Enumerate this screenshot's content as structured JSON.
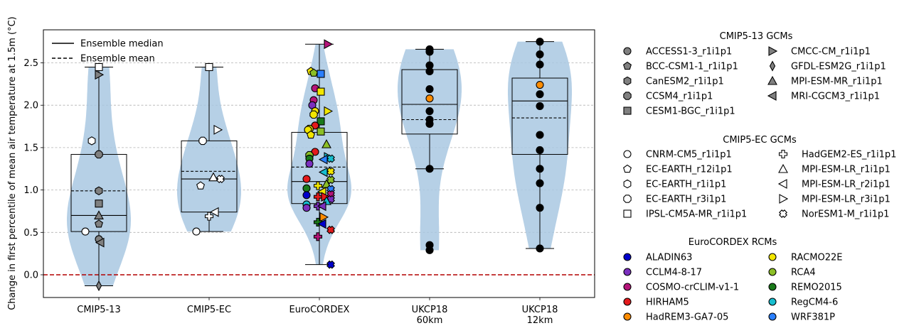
{
  "chart_data": {
    "type": "violin",
    "ylabel": "Change in first percentile of mean air temperature at 1.5m (°C)",
    "ylim": [
      -0.27,
      2.88
    ],
    "yticks": [
      "0.0",
      "0.5",
      "1.0",
      "1.5",
      "2.0",
      "2.5"
    ],
    "grid": "y-dashed",
    "reference_line": {
      "y": 0.0,
      "color": "#b30000",
      "style": "dashed"
    },
    "categories": [
      {
        "id": "cmip513",
        "label": [
          "CMIP5-13"
        ]
      },
      {
        "id": "cmip5ec",
        "label": [
          "CMIP5-EC"
        ]
      },
      {
        "id": "euro",
        "label": [
          "EuroCORDEX"
        ]
      },
      {
        "id": "ukcp60",
        "label": [
          "UKCP18",
          "60km"
        ]
      },
      {
        "id": "ukcp12",
        "label": [
          "UKCP18",
          "12km"
        ]
      }
    ],
    "legend_lines": [
      {
        "label": "Ensemble median",
        "style": "solid"
      },
      {
        "label": "Ensemble mean",
        "style": "dashed"
      }
    ],
    "boxes": [
      {
        "cat": "cmip513",
        "q1": 0.51,
        "median": 0.7,
        "q3": 1.42,
        "mean": 0.99,
        "whisker_low": -0.13,
        "whisker_high": 2.45
      },
      {
        "cat": "cmip5ec",
        "q1": 0.74,
        "median": 1.13,
        "q3": 1.58,
        "mean": 1.22,
        "whisker_low": 0.51,
        "whisker_high": 2.45
      },
      {
        "cat": "euro",
        "q1": 0.84,
        "median": 1.1,
        "q3": 1.68,
        "mean": 1.27,
        "whisker_low": 0.12,
        "whisker_high": 2.72
      },
      {
        "cat": "ukcp60",
        "q1": 1.66,
        "median": 2.01,
        "q3": 2.42,
        "mean": 1.83,
        "whisker_low": 1.25,
        "whisker_high": 2.66
      },
      {
        "cat": "ukcp12",
        "q1": 1.42,
        "median": 2.05,
        "q3": 2.32,
        "mean": 1.85,
        "whisker_low": 0.31,
        "whisker_high": 2.75
      }
    ],
    "legend_groups": [
      {
        "title": "CMIP5-13 GCMs",
        "items": [
          {
            "label": "ACCESS1-3_r1i1p1",
            "marker": "circle",
            "fill": "#808080"
          },
          {
            "label": "BCC-CSM1-1_r1i1p1",
            "marker": "pentagon",
            "fill": "#808080"
          },
          {
            "label": "CanESM2_r1i1p1",
            "marker": "hexagon",
            "fill": "#808080"
          },
          {
            "label": "CCSM4_r1i1p1",
            "marker": "octagon",
            "fill": "#808080"
          },
          {
            "label": "CESM1-BGC_r1i1p1",
            "marker": "square",
            "fill": "#808080"
          },
          {
            "label": "CMCC-CM_r1i1p1",
            "marker": "tri-right",
            "fill": "#808080"
          },
          {
            "label": "GFDL-ESM2G_r1i1p1",
            "marker": "diamond",
            "fill": "#808080"
          },
          {
            "label": "MPI-ESM-MR_r1i1p1",
            "marker": "tri-up",
            "fill": "#808080"
          },
          {
            "label": "MRI-CGCM3_r1i1p1",
            "marker": "tri-left",
            "fill": "#808080"
          }
        ]
      },
      {
        "title": "CMIP5-EC GCMs",
        "items": [
          {
            "label": "CNRM-CM5_r1i1p1",
            "marker": "circle",
            "fill": "#ffffff"
          },
          {
            "label": "EC-EARTH_r12i1p1",
            "marker": "pentagon",
            "fill": "#ffffff"
          },
          {
            "label": "EC-EARTH_r1i1p1",
            "marker": "hexagon",
            "fill": "#ffffff"
          },
          {
            "label": "EC-EARTH_r3i1p1",
            "marker": "octagon",
            "fill": "#ffffff"
          },
          {
            "label": "IPSL-CM5A-MR_r1i1p1",
            "marker": "square",
            "fill": "#ffffff"
          },
          {
            "label": "HadGEM2-ES_r1i1p1",
            "marker": "plus",
            "fill": "#ffffff"
          },
          {
            "label": "MPI-ESM-LR_r1i1p1",
            "marker": "tri-up",
            "fill": "#ffffff"
          },
          {
            "label": "MPI-ESM-LR_r2i1p1",
            "marker": "tri-left",
            "fill": "#ffffff"
          },
          {
            "label": "MPI-ESM-LR_r3i1p1",
            "marker": "tri-right",
            "fill": "#ffffff"
          },
          {
            "label": "NorESM1-M_r1i1p1",
            "marker": "xcross",
            "fill": "#ffffff"
          }
        ]
      },
      {
        "title": "EuroCORDEX RCMs",
        "items": [
          {
            "label": "ALADIN63",
            "marker": "circle",
            "fill": "#0000cc"
          },
          {
            "label": "CCLM4-8-17",
            "marker": "circle",
            "fill": "#7b2fbe"
          },
          {
            "label": "COSMO-crCLIM-v1-1",
            "marker": "circle",
            "fill": "#b5147a"
          },
          {
            "label": "HIRHAM5",
            "marker": "circle",
            "fill": "#e41a1c"
          },
          {
            "label": "HadREM3-GA7-05",
            "marker": "circle",
            "fill": "#ff8c00"
          },
          {
            "label": "RACMO22E",
            "marker": "circle",
            "fill": "#f2e600"
          },
          {
            "label": "RCA4",
            "marker": "circle",
            "fill": "#8cbf26"
          },
          {
            "label": "REMO2015",
            "marker": "circle",
            "fill": "#1a7a1a"
          },
          {
            "label": "RegCM4-6",
            "marker": "circle",
            "fill": "#17becf"
          },
          {
            "label": "WRF381P",
            "marker": "circle",
            "fill": "#2a7fff"
          }
        ]
      }
    ],
    "points": [
      {
        "cat": "cmip513",
        "dx": -19,
        "y": 0.51,
        "marker": "circle",
        "fill": "#ffffff"
      },
      {
        "cat": "cmip513",
        "dx": -10,
        "y": 1.58,
        "marker": "hexagon",
        "fill": "#ffffff"
      },
      {
        "cat": "cmip513",
        "dx": 0,
        "y": 2.45,
        "marker": "square",
        "fill": "#ffffff"
      },
      {
        "cat": "cmip513",
        "dx": 0,
        "y": 2.36,
        "marker": "tri-right",
        "fill": "#808080"
      },
      {
        "cat": "cmip513",
        "dx": 0,
        "y": 1.42,
        "marker": "octagon",
        "fill": "#808080"
      },
      {
        "cat": "cmip513",
        "dx": 0,
        "y": 0.99,
        "marker": "hexagon",
        "fill": "#808080"
      },
      {
        "cat": "cmip513",
        "dx": 0,
        "y": 0.84,
        "marker": "square",
        "fill": "#808080"
      },
      {
        "cat": "cmip513",
        "dx": 0,
        "y": 0.7,
        "marker": "tri-up",
        "fill": "#808080"
      },
      {
        "cat": "cmip513",
        "dx": 0,
        "y": 0.6,
        "marker": "pentagon",
        "fill": "#808080"
      },
      {
        "cat": "cmip513",
        "dx": 0,
        "y": 0.42,
        "marker": "circle",
        "fill": "#808080"
      },
      {
        "cat": "cmip513",
        "dx": 2,
        "y": 0.38,
        "marker": "tri-left",
        "fill": "#808080"
      },
      {
        "cat": "cmip513",
        "dx": 0,
        "y": -0.13,
        "marker": "diamond",
        "fill": "#808080"
      },
      {
        "cat": "cmip5ec",
        "dx": -18,
        "y": 0.51,
        "marker": "circle",
        "fill": "#ffffff"
      },
      {
        "cat": "cmip5ec",
        "dx": -12,
        "y": 1.05,
        "marker": "pentagon",
        "fill": "#ffffff"
      },
      {
        "cat": "cmip5ec",
        "dx": -9,
        "y": 1.58,
        "marker": "octagon",
        "fill": "#ffffff"
      },
      {
        "cat": "cmip5ec",
        "dx": 0,
        "y": 2.45,
        "marker": "square",
        "fill": "#ffffff"
      },
      {
        "cat": "cmip5ec",
        "dx": 0,
        "y": 0.69,
        "marker": "plus",
        "fill": "#ffffff"
      },
      {
        "cat": "cmip5ec",
        "dx": 6,
        "y": 1.15,
        "marker": "tri-up",
        "fill": "#ffffff"
      },
      {
        "cat": "cmip5ec",
        "dx": 8,
        "y": 0.74,
        "marker": "tri-left",
        "fill": "#ffffff"
      },
      {
        "cat": "cmip5ec",
        "dx": 12,
        "y": 1.71,
        "marker": "tri-right",
        "fill": "#ffffff"
      },
      {
        "cat": "cmip5ec",
        "dx": 16,
        "y": 1.13,
        "marker": "xcross",
        "fill": "#ffffff"
      },
      {
        "cat": "euro",
        "dx": 12,
        "y": 2.72,
        "marker": "tri-right",
        "fill": "#b5147a"
      },
      {
        "cat": "euro",
        "dx": -12,
        "y": 2.4,
        "marker": "pentagon",
        "fill": "#f2e600"
      },
      {
        "cat": "euro",
        "dx": -8,
        "y": 2.38,
        "marker": "pentagon",
        "fill": "#8cbf26"
      },
      {
        "cat": "euro",
        "dx": 2,
        "y": 2.37,
        "marker": "square",
        "fill": "#2a7fff"
      },
      {
        "cat": "euro",
        "dx": -6,
        "y": 2.2,
        "marker": "circle",
        "fill": "#b5147a"
      },
      {
        "cat": "euro",
        "dx": 2,
        "y": 2.16,
        "marker": "square",
        "fill": "#f2e600"
      },
      {
        "cat": "euro",
        "dx": -8,
        "y": 2.06,
        "marker": "circle",
        "fill": "#b5147a"
      },
      {
        "cat": "euro",
        "dx": -10,
        "y": 2.0,
        "marker": "circle",
        "fill": "#7b2fbe"
      },
      {
        "cat": "euro",
        "dx": -6,
        "y": 1.93,
        "marker": "circle",
        "fill": "#f2e600"
      },
      {
        "cat": "euro",
        "dx": 12,
        "y": 1.93,
        "marker": "tri-right",
        "fill": "#f2e600"
      },
      {
        "cat": "euro",
        "dx": -8,
        "y": 1.89,
        "marker": "octagon",
        "fill": "#f2e600"
      },
      {
        "cat": "euro",
        "dx": 2,
        "y": 1.81,
        "marker": "square",
        "fill": "#1a7a1a"
      },
      {
        "cat": "euro",
        "dx": -6,
        "y": 1.76,
        "marker": "circle",
        "fill": "#e41a1c"
      },
      {
        "cat": "euro",
        "dx": -14,
        "y": 1.72,
        "marker": "octagon",
        "fill": "#f2e600"
      },
      {
        "cat": "euro",
        "dx": -16,
        "y": 1.71,
        "marker": "circle",
        "fill": "#f2e600"
      },
      {
        "cat": "euro",
        "dx": 2,
        "y": 1.69,
        "marker": "square",
        "fill": "#8cbf26"
      },
      {
        "cat": "euro",
        "dx": -12,
        "y": 1.65,
        "marker": "pentagon",
        "fill": "#f2e600"
      },
      {
        "cat": "euro",
        "dx": 10,
        "y": 1.54,
        "marker": "tri-up",
        "fill": "#8cbf26"
      },
      {
        "cat": "euro",
        "dx": -6,
        "y": 1.45,
        "marker": "circle",
        "fill": "#e41a1c"
      },
      {
        "cat": "euro",
        "dx": -14,
        "y": 1.41,
        "marker": "octagon",
        "fill": "#8cbf26"
      },
      {
        "cat": "euro",
        "dx": -14,
        "y": 1.37,
        "marker": "circle",
        "fill": "#1a7a1a"
      },
      {
        "cat": "euro",
        "dx": 12,
        "y": 1.39,
        "marker": "tri-right",
        "fill": "#17becf"
      },
      {
        "cat": "euro",
        "dx": 16,
        "y": 1.37,
        "marker": "xcross",
        "fill": "#17becf"
      },
      {
        "cat": "euro",
        "dx": 6,
        "y": 1.36,
        "marker": "tri-left",
        "fill": "#2a7fff"
      },
      {
        "cat": "euro",
        "dx": -14,
        "y": 1.31,
        "marker": "circle",
        "fill": "#7b2fbe"
      },
      {
        "cat": "euro",
        "dx": 16,
        "y": 1.22,
        "marker": "xcross",
        "fill": "#f2e600"
      },
      {
        "cat": "euro",
        "dx": 6,
        "y": 1.21,
        "marker": "tri-left",
        "fill": "#17becf"
      },
      {
        "cat": "euro",
        "dx": -18,
        "y": 1.13,
        "marker": "circle",
        "fill": "#e41a1c"
      },
      {
        "cat": "euro",
        "dx": 16,
        "y": 1.12,
        "marker": "xcross",
        "fill": "#8cbf26"
      },
      {
        "cat": "euro",
        "dx": 10,
        "y": 1.07,
        "marker": "tri-up",
        "fill": "#8cbf26"
      },
      {
        "cat": "euro",
        "dx": -2,
        "y": 1.05,
        "marker": "plus",
        "fill": "#f2e600"
      },
      {
        "cat": "euro",
        "dx": -18,
        "y": 1.02,
        "marker": "circle",
        "fill": "#1a7a1a"
      },
      {
        "cat": "euro",
        "dx": 16,
        "y": 1.01,
        "marker": "xcross",
        "fill": "#2a7fff"
      },
      {
        "cat": "euro",
        "dx": 4,
        "y": 0.98,
        "marker": "tri-left",
        "fill": "#f2e600"
      },
      {
        "cat": "euro",
        "dx": -18,
        "y": 0.94,
        "marker": "circle",
        "fill": "#0000cc"
      },
      {
        "cat": "euro",
        "dx": 16,
        "y": 0.95,
        "marker": "xcross",
        "fill": "#b5147a"
      },
      {
        "cat": "euro",
        "dx": -2,
        "y": 0.92,
        "marker": "plus",
        "fill": "#e41a1c"
      },
      {
        "cat": "euro",
        "dx": 8,
        "y": 0.92,
        "marker": "tri-right",
        "fill": "#e41a1c"
      },
      {
        "cat": "euro",
        "dx": 16,
        "y": 0.89,
        "marker": "xcross",
        "fill": "#7b2fbe"
      },
      {
        "cat": "euro",
        "dx": 10,
        "y": 0.87,
        "marker": "tri-up",
        "fill": "#17becf"
      },
      {
        "cat": "euro",
        "dx": -18,
        "y": 0.83,
        "marker": "circle",
        "fill": "#17becf"
      },
      {
        "cat": "euro",
        "dx": -18,
        "y": 0.79,
        "marker": "circle",
        "fill": "#7b2fbe"
      },
      {
        "cat": "euro",
        "dx": -2,
        "y": 0.81,
        "marker": "plus",
        "fill": "#7b2fbe"
      },
      {
        "cat": "euro",
        "dx": 4,
        "y": 0.81,
        "marker": "tri-left",
        "fill": "#7b2fbe"
      },
      {
        "cat": "euro",
        "dx": 6,
        "y": 0.68,
        "marker": "tri-right",
        "fill": "#ff8c00"
      },
      {
        "cat": "euro",
        "dx": -2,
        "y": 0.62,
        "marker": "plus",
        "fill": "#1a7a1a"
      },
      {
        "cat": "euro",
        "dx": 4,
        "y": 0.6,
        "marker": "tri-left",
        "fill": "#0000cc"
      },
      {
        "cat": "euro",
        "dx": 16,
        "y": 0.53,
        "marker": "xcross",
        "fill": "#e41a1c"
      },
      {
        "cat": "euro",
        "dx": -2,
        "y": 0.45,
        "marker": "plus",
        "fill": "#b5147a"
      },
      {
        "cat": "euro",
        "dx": 16,
        "y": 0.12,
        "marker": "xcross",
        "fill": "#0000cc"
      },
      {
        "cat": "ukcp60",
        "dx": 0,
        "y": 2.66,
        "marker": "circle",
        "fill": "#000000"
      },
      {
        "cat": "ukcp60",
        "dx": 0,
        "y": 2.63,
        "marker": "circle",
        "fill": "#000000"
      },
      {
        "cat": "ukcp60",
        "dx": 0,
        "y": 2.47,
        "marker": "circle",
        "fill": "#000000"
      },
      {
        "cat": "ukcp60",
        "dx": 0,
        "y": 2.4,
        "marker": "circle",
        "fill": "#000000"
      },
      {
        "cat": "ukcp60",
        "dx": 0,
        "y": 2.19,
        "marker": "circle",
        "fill": "#000000"
      },
      {
        "cat": "ukcp60",
        "dx": 0,
        "y": 2.08,
        "marker": "circle",
        "fill": "#ff8c00"
      },
      {
        "cat": "ukcp60",
        "dx": 0,
        "y": 1.93,
        "marker": "circle",
        "fill": "#000000"
      },
      {
        "cat": "ukcp60",
        "dx": 0,
        "y": 1.83,
        "marker": "circle",
        "fill": "#000000"
      },
      {
        "cat": "ukcp60",
        "dx": 0,
        "y": 1.78,
        "marker": "circle",
        "fill": "#000000"
      },
      {
        "cat": "ukcp60",
        "dx": 0,
        "y": 1.25,
        "marker": "circle",
        "fill": "#000000"
      },
      {
        "cat": "ukcp60",
        "dx": 0,
        "y": 0.35,
        "marker": "circle",
        "fill": "#000000"
      },
      {
        "cat": "ukcp60",
        "dx": 0,
        "y": 0.29,
        "marker": "circle",
        "fill": "#000000"
      },
      {
        "cat": "ukcp12",
        "dx": 0,
        "y": 2.75,
        "marker": "circle",
        "fill": "#000000"
      },
      {
        "cat": "ukcp12",
        "dx": 0,
        "y": 2.6,
        "marker": "circle",
        "fill": "#000000"
      },
      {
        "cat": "ukcp12",
        "dx": 0,
        "y": 2.48,
        "marker": "circle",
        "fill": "#000000"
      },
      {
        "cat": "ukcp12",
        "dx": 0,
        "y": 2.24,
        "marker": "circle",
        "fill": "#ff8c00"
      },
      {
        "cat": "ukcp12",
        "dx": 0,
        "y": 2.13,
        "marker": "circle",
        "fill": "#000000"
      },
      {
        "cat": "ukcp12",
        "dx": 0,
        "y": 1.99,
        "marker": "circle",
        "fill": "#000000"
      },
      {
        "cat": "ukcp12",
        "dx": 0,
        "y": 1.65,
        "marker": "circle",
        "fill": "#000000"
      },
      {
        "cat": "ukcp12",
        "dx": 0,
        "y": 1.47,
        "marker": "circle",
        "fill": "#000000"
      },
      {
        "cat": "ukcp12",
        "dx": 0,
        "y": 1.25,
        "marker": "circle",
        "fill": "#000000"
      },
      {
        "cat": "ukcp12",
        "dx": 0,
        "y": 1.08,
        "marker": "circle",
        "fill": "#000000"
      },
      {
        "cat": "ukcp12",
        "dx": 0,
        "y": 0.79,
        "marker": "circle",
        "fill": "#000000"
      },
      {
        "cat": "ukcp12",
        "dx": 0,
        "y": 0.31,
        "marker": "circle",
        "fill": "#000000"
      }
    ]
  }
}
